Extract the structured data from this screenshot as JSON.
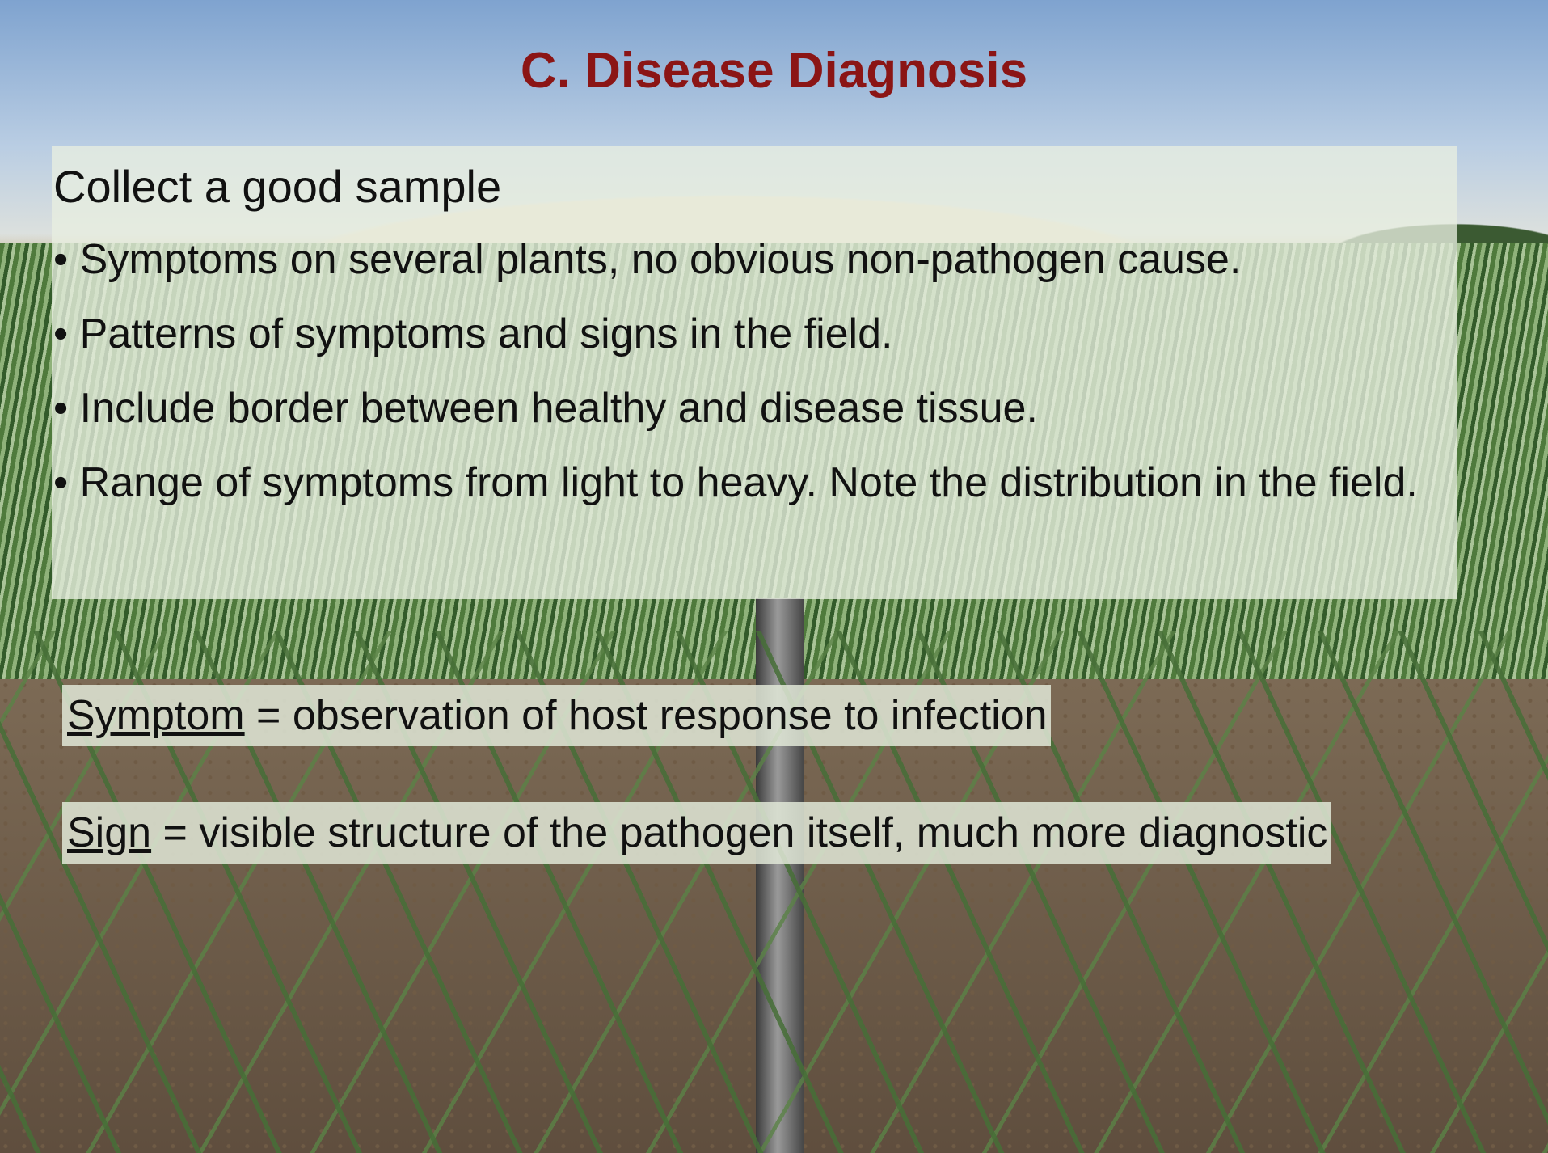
{
  "title": "C. Disease Diagnosis",
  "sample_box": {
    "heading": "Collect a good sample",
    "bullets": [
      "• Symptoms on several plants, no obvious non-pathogen cause.",
      "• Patterns of symptoms and signs in the field.",
      "• Include border between healthy and disease tissue.",
      "• Range of symptoms from light to heavy. Note the distribution in the field."
    ]
  },
  "definitions": [
    {
      "term": "Symptom",
      "text": " = observation of host response to infection"
    },
    {
      "term": "Sign",
      "text": " = visible structure of the pathogen itself, much more diagnostic"
    }
  ]
}
